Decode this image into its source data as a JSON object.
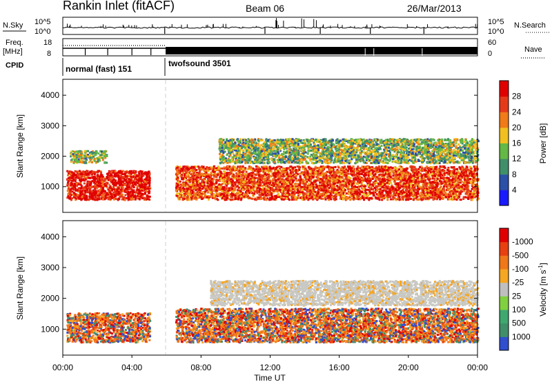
{
  "header": {
    "station": "Rankin Inlet (fitACF)",
    "beam": "Beam 06",
    "date": "26/Mar/2013"
  },
  "status_panel": {
    "nsky_label": "N.Sky",
    "nsearch_label": "N.Search",
    "nsky_ticks": [
      "10^5",
      "10^0"
    ],
    "nsearch_ticks": [
      "10^5",
      "10^0"
    ],
    "freq_label": "Freq.",
    "freq_unit": "[MHz]",
    "freq_ticks": [
      "18",
      "8"
    ],
    "nave_label": "Nave",
    "nave_ticks": [
      "60",
      "0"
    ],
    "cpid_label": "CPID",
    "cpid_segments": [
      {
        "label": "normal (fast) 151",
        "start_hour": 0,
        "end_hour": 5.95
      },
      {
        "label": "twofsound 3501",
        "start_hour": 5.95,
        "end_hour": 24
      }
    ]
  },
  "chart_data": [
    {
      "type": "heatmap",
      "parameter": "Power",
      "ylabel": "Slant Range [km]",
      "ylim": [
        180,
        4500
      ],
      "yticks": [
        1000,
        2000,
        3000,
        4000
      ],
      "xlim": [
        0,
        24
      ],
      "colorbar": {
        "title": "Power [dB]",
        "ticks": [
          "4",
          "8",
          "12",
          "16",
          "20",
          "24",
          "28"
        ],
        "colors": [
          "#1a1aff",
          "#2c4fa8",
          "#3f8f6a",
          "#64b845",
          "#f0c020",
          "#f07b18",
          "#e53a1a",
          "#e00000"
        ]
      },
      "regions": [
        {
          "name": "early main echo band",
          "x": [
            0.2,
            5.0
          ],
          "y": [
            600,
            1550
          ],
          "value_db": 26
        },
        {
          "name": "early upper echo",
          "x": [
            0.4,
            2.5
          ],
          "y": [
            1800,
            2200
          ],
          "value_db": 12
        },
        {
          "name": "main echo band",
          "x": [
            6.5,
            24
          ],
          "y": [
            600,
            1700
          ],
          "value_db": 24
        },
        {
          "name": "upper echo band",
          "x": [
            9,
            24
          ],
          "y": [
            1800,
            2600
          ],
          "value_db": 12
        }
      ]
    },
    {
      "type": "heatmap",
      "parameter": "Velocity",
      "ylabel": "Slant Range [km]",
      "ylim": [
        180,
        4500
      ],
      "yticks": [
        1000,
        2000,
        3000,
        4000
      ],
      "xlim": [
        0,
        24
      ],
      "colorbar": {
        "title": "Velocity [m s^-1]",
        "ticks": [
          "1000",
          "500",
          "100",
          "25",
          "-25",
          "-100",
          "-500",
          "-1000"
        ],
        "colors": [
          "#2f4fcf",
          "#3f8f6a",
          "#3ea86f",
          "#80d040",
          "#bfbfbf",
          "#f5a623",
          "#f07818",
          "#e84010",
          "#e00000"
        ]
      },
      "regions": [
        {
          "name": "early echo band",
          "x": [
            0.2,
            5.0
          ],
          "y": [
            600,
            1550
          ],
          "value_ms": -100
        },
        {
          "name": "ground scatter band",
          "x": [
            8.5,
            24
          ],
          "y": [
            1800,
            2600
          ],
          "value_ms": 0
        },
        {
          "name": "main echo band",
          "x": [
            6.5,
            24
          ],
          "y": [
            600,
            1700
          ],
          "value_ms": -100
        }
      ]
    }
  ],
  "xaxis": {
    "title": "Time UT",
    "ticks": [
      "00:00",
      "04:00",
      "08:00",
      "12:00",
      "16:00",
      "20:00",
      "00:00"
    ]
  }
}
